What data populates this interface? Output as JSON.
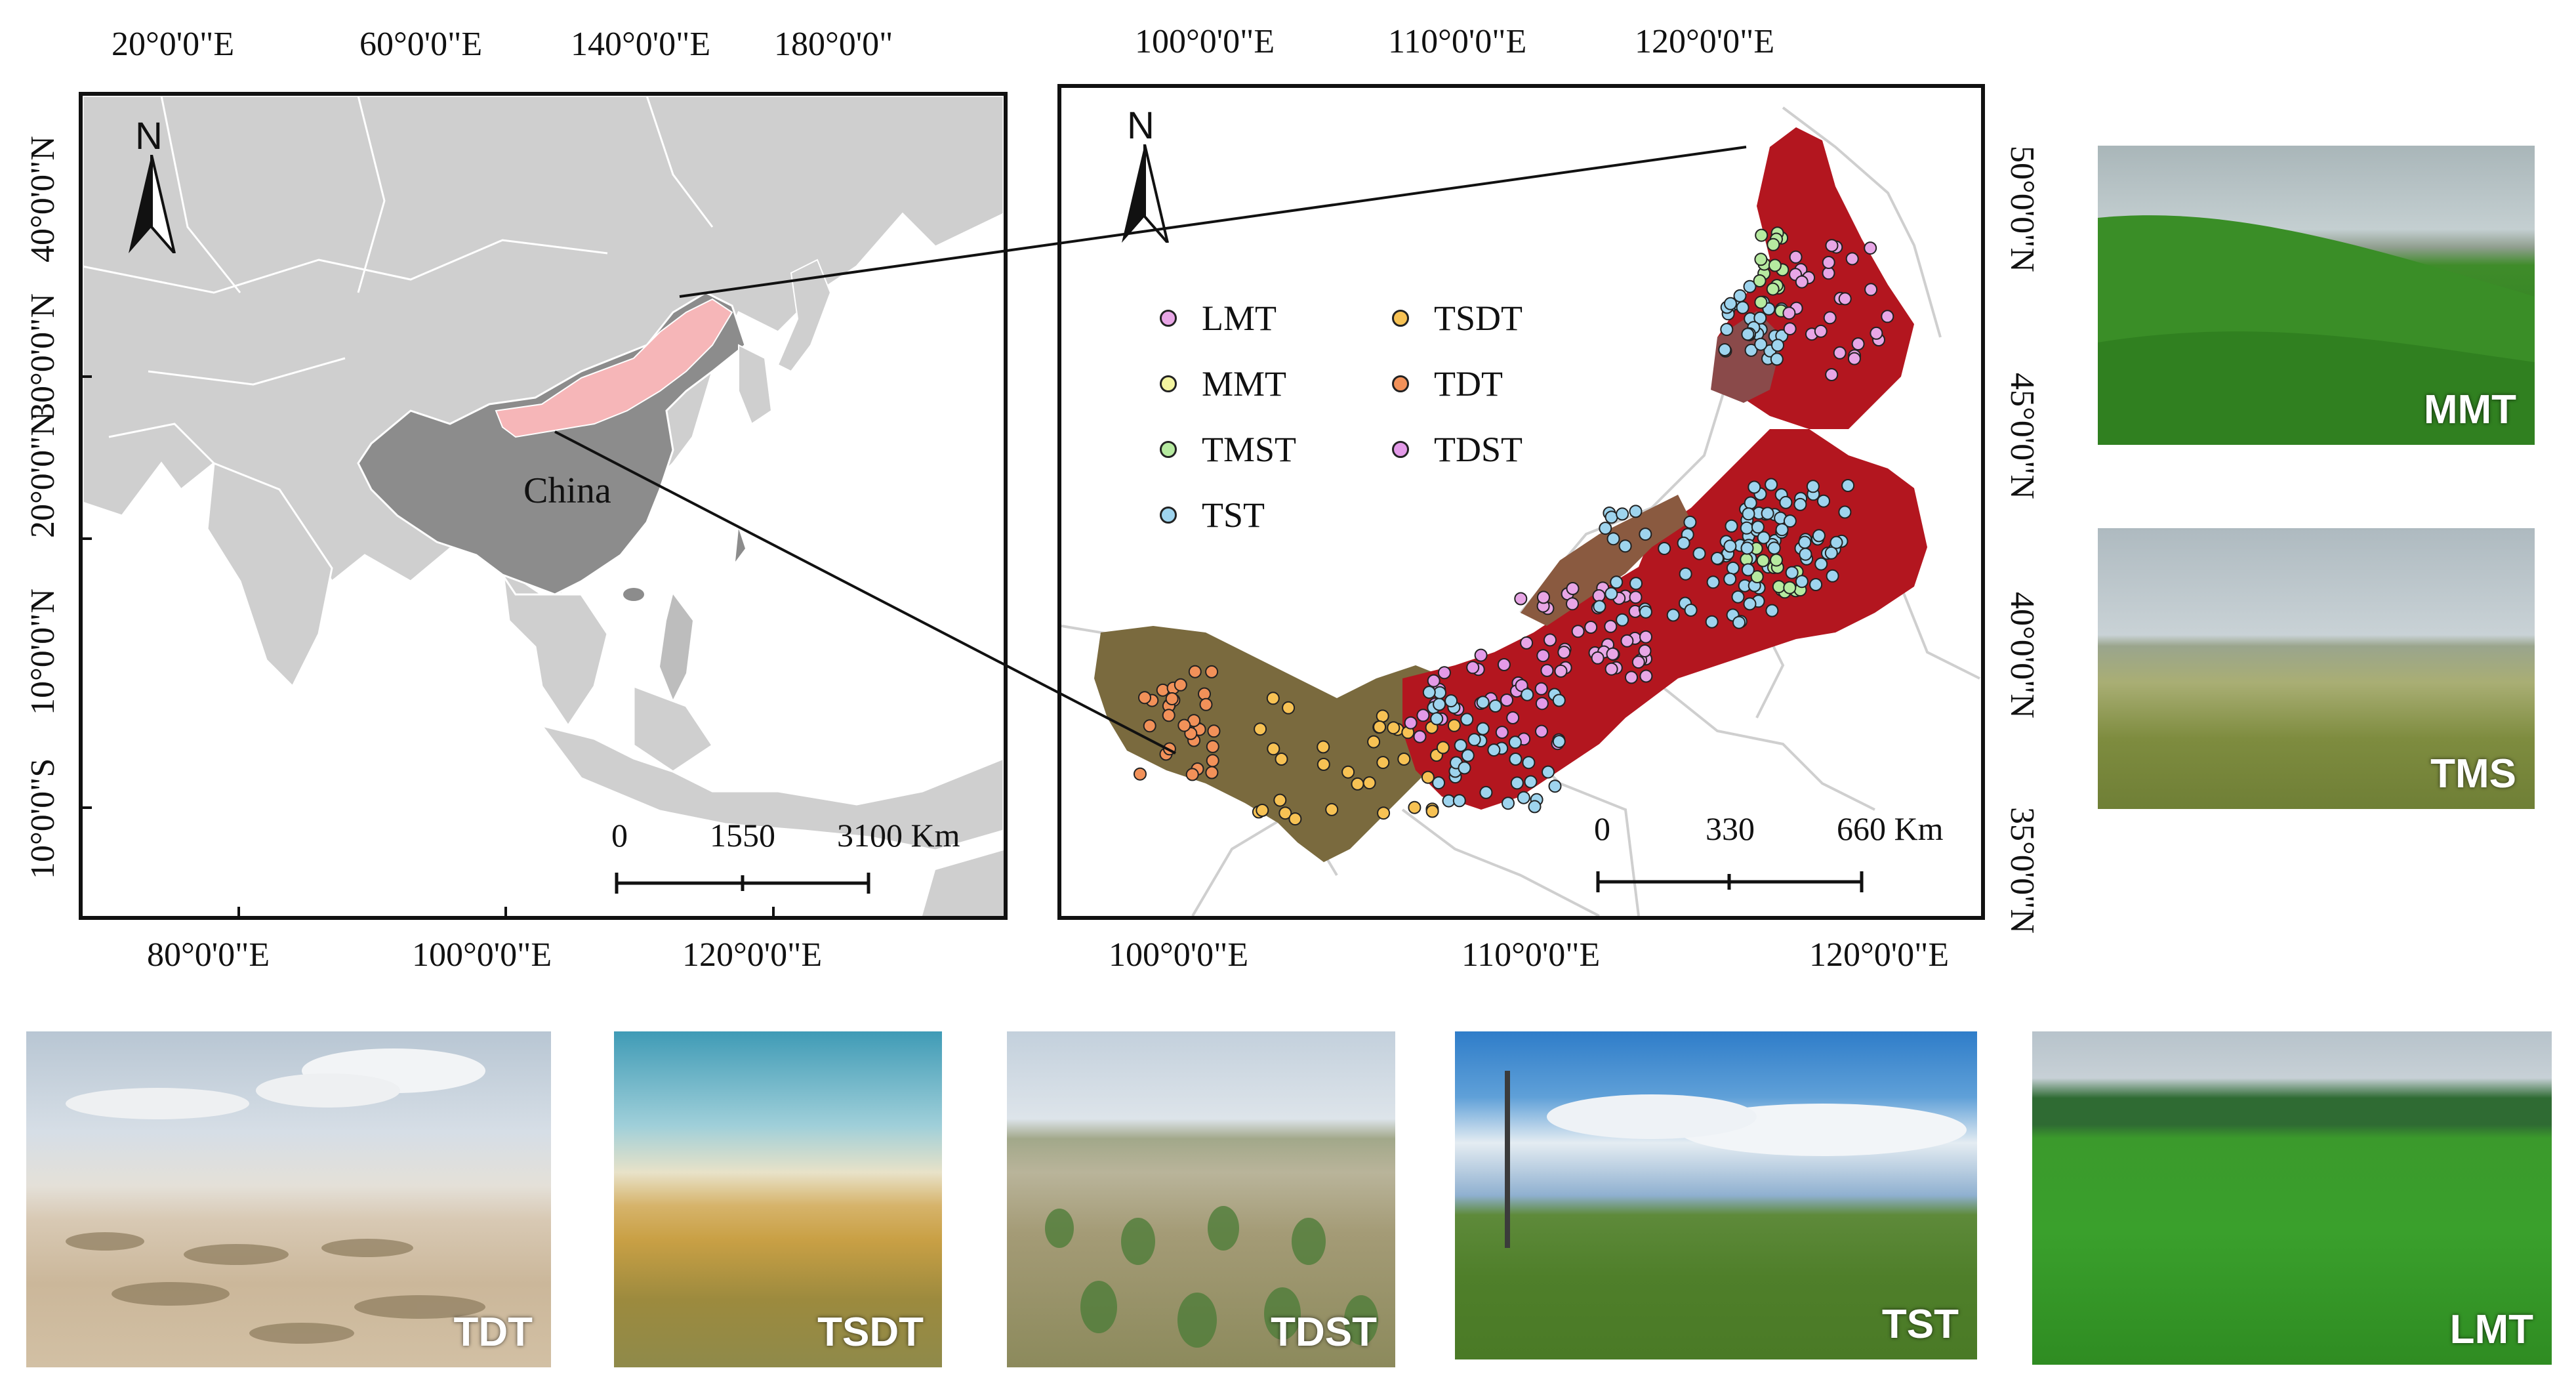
{
  "left_map": {
    "top_ticks": [
      "20°0'0\"E",
      "60°0'0\"E",
      "140°0'0\"E",
      "180°0'0\""
    ],
    "bottom_ticks": [
      "80°0'0\"E",
      "100°0'0\"E",
      "120°0'0\"E"
    ],
    "left_ticks": [
      "40°0'0\"N",
      "30°0'0\"N",
      "20°0'0\"N",
      "10°0'0\"N",
      "10°0'0\"S"
    ],
    "country_label": "China",
    "north_label": "N",
    "scale": [
      "0",
      "1550",
      "3100 Km"
    ]
  },
  "right_map": {
    "top_ticks": [
      "100°0'0\"E",
      "110°0'0\"E",
      "120°0'0\"E"
    ],
    "bottom_ticks": [
      "100°0'0\"E",
      "110°0'0\"E",
      "120°0'0\"E"
    ],
    "right_ticks": [
      "50°0'0\"N",
      "45°0'0\"N",
      "40°0'0\"N",
      "35°0'0\"N"
    ],
    "north_label": "N",
    "scale": [
      "0",
      "330",
      "660 Km"
    ],
    "legend": [
      {
        "label": "LMT",
        "color": "#e8a6e6"
      },
      {
        "label": "TSDT",
        "color": "#f7c254"
      },
      {
        "label": "MMT",
        "color": "#f4f5a0"
      },
      {
        "label": "TDT",
        "color": "#f29159"
      },
      {
        "label": "TMST",
        "color": "#b6eaa0"
      },
      {
        "label": "TDST",
        "color": "#e39ae8"
      },
      {
        "label": "TST",
        "color": "#9ed4ee"
      }
    ]
  },
  "photos": {
    "side": [
      "MMT",
      "TMS"
    ],
    "bottom": [
      "TDT",
      "TSDT",
      "TDST",
      "TST",
      "LMT"
    ]
  },
  "colors": {
    "china": "#8c8c8c",
    "inner_mongolia_highlight": "#f6b6b8",
    "land": "#cfcfcf",
    "region_red": "#b3161f",
    "desert_brown": "#7a6a3e"
  }
}
